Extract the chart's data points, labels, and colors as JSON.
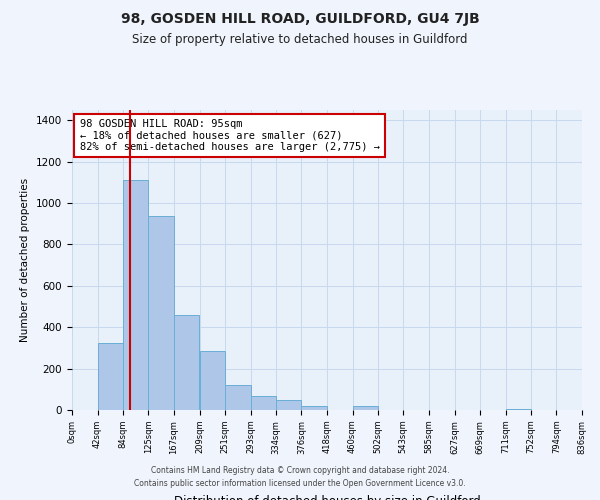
{
  "title": "98, GOSDEN HILL ROAD, GUILDFORD, GU4 7JB",
  "subtitle": "Size of property relative to detached houses in Guildford",
  "xlabel": "Distribution of detached houses by size in Guildford",
  "ylabel": "Number of detached properties",
  "bar_edges": [
    0,
    42,
    84,
    125,
    167,
    209,
    251,
    293,
    334,
    376,
    418,
    460,
    502,
    543,
    585,
    627,
    669,
    711,
    752,
    794,
    836
  ],
  "bar_heights": [
    0,
    325,
    1110,
    940,
    460,
    285,
    120,
    70,
    47,
    20,
    0,
    20,
    0,
    0,
    0,
    0,
    0,
    5,
    0,
    0
  ],
  "bar_color": "#aec6e8",
  "bar_edge_color": "#6aaed6",
  "bg_color": "#e8f0fa",
  "grid_color": "#c8d8ef",
  "property_line_x": 95,
  "property_line_color": "#cc0000",
  "annotation_text_line1": "98 GOSDEN HILL ROAD: 95sqm",
  "annotation_text_line2": "← 18% of detached houses are smaller (627)",
  "annotation_text_line3": "82% of semi-detached houses are larger (2,775) →",
  "annotation_box_color": "#ffffff",
  "annotation_border_color": "#cc0000",
  "ylim": [
    0,
    1450
  ],
  "yticks": [
    0,
    200,
    400,
    600,
    800,
    1000,
    1200,
    1400
  ],
  "footer_line1": "Contains HM Land Registry data © Crown copyright and database right 2024.",
  "footer_line2": "Contains public sector information licensed under the Open Government Licence v3.0."
}
